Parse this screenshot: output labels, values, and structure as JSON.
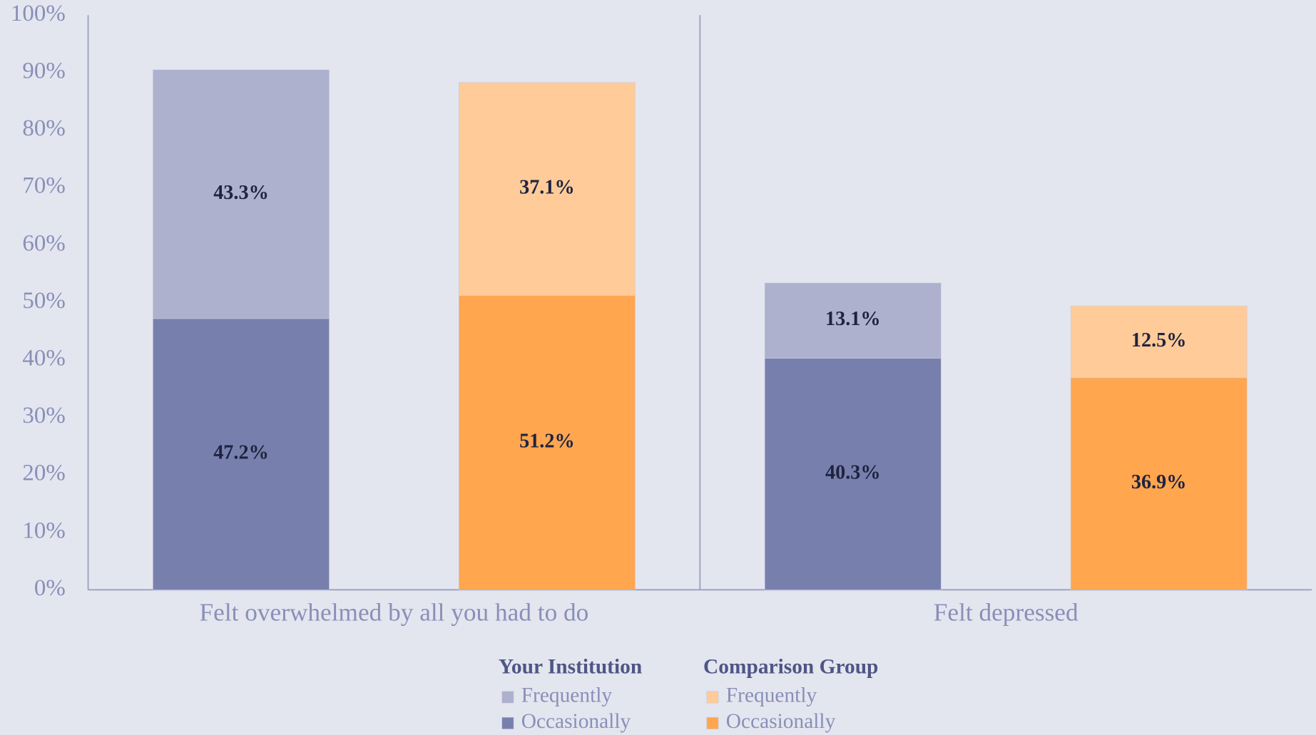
{
  "chart_data": {
    "type": "stacked_bar",
    "categories": [
      "Felt overwhelmed by all you had to do",
      "Felt depressed"
    ],
    "groups": [
      {
        "name": "Your Institution",
        "series": [
          {
            "name": "Frequently",
            "color": "#adb1cd",
            "values": [
              43.3,
              13.1
            ],
            "value_labels": [
              "43.3%",
              "13.1%"
            ]
          },
          {
            "name": "Occasionally",
            "color": "#7780ad",
            "values": [
              47.2,
              40.3
            ],
            "value_labels": [
              "47.2%",
              "40.3%"
            ]
          }
        ]
      },
      {
        "name": "Comparison Group",
        "series": [
          {
            "name": "Frequently",
            "color": "#ffcb99",
            "values": [
              37.1,
              12.5
            ],
            "value_labels": [
              "37.1%",
              "12.5%"
            ]
          },
          {
            "name": "Occasionally",
            "color": "#ffa64f",
            "values": [
              51.2,
              36.9
            ],
            "value_labels": [
              "51.2%",
              "36.9%"
            ]
          }
        ]
      }
    ],
    "ylim": [
      0,
      100
    ],
    "yticks": [
      {
        "value": 0,
        "label": "0%"
      },
      {
        "value": 10,
        "label": "10%"
      },
      {
        "value": 20,
        "label": "20%"
      },
      {
        "value": 30,
        "label": "30%"
      },
      {
        "value": 40,
        "label": "40%"
      },
      {
        "value": 50,
        "label": "50%"
      },
      {
        "value": 60,
        "label": "60%"
      },
      {
        "value": 70,
        "label": "70%"
      },
      {
        "value": 80,
        "label": "80%"
      },
      {
        "value": 90,
        "label": "90%"
      },
      {
        "value": 100,
        "label": "100%"
      }
    ]
  }
}
